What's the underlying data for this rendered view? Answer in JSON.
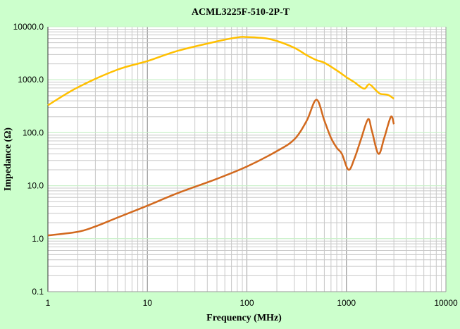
{
  "chart_data": {
    "type": "line",
    "title": "ACML3225F-510-2P-T",
    "xlabel": "Frequency (MHz)",
    "ylabel": "Impedance (Ω)",
    "xscale": "log",
    "yscale": "log",
    "xlim": [
      1,
      10000
    ],
    "ylim": [
      0.1,
      10000
    ],
    "xticks": [
      "1",
      "10",
      "100",
      "1000",
      "10000"
    ],
    "yticks": [
      "0.1",
      "1.0",
      "10.0",
      "100.0",
      "1000.0",
      "10000.0"
    ],
    "grid": true,
    "background": "#ccffcc",
    "series": [
      {
        "color": "#ffc000",
        "x": [
          1,
          2,
          5,
          10,
          20,
          50,
          80,
          100,
          150,
          200,
          300,
          400,
          500,
          600,
          800,
          1000,
          1200,
          1500,
          1700,
          2000,
          2200,
          2600,
          3000
        ],
        "y": [
          330,
          720,
          1550,
          2250,
          3500,
          5300,
          6300,
          6400,
          6100,
          5400,
          4000,
          2900,
          2350,
          2100,
          1500,
          1120,
          900,
          680,
          820,
          620,
          540,
          520,
          440
        ]
      },
      {
        "color": "#d2691e",
        "x": [
          1,
          2,
          3,
          5,
          10,
          20,
          50,
          100,
          200,
          300,
          400,
          500,
          600,
          700,
          800,
          900,
          1050,
          1200,
          1400,
          1650,
          1800,
          2100,
          2400,
          2800,
          3000
        ],
        "y": [
          1.15,
          1.35,
          1.7,
          2.5,
          4.2,
          7.2,
          13.5,
          23,
          45,
          75,
          170,
          420,
          170,
          80,
          52,
          40,
          20,
          32,
          75,
          180,
          110,
          40,
          80,
          200,
          145
        ]
      }
    ]
  }
}
